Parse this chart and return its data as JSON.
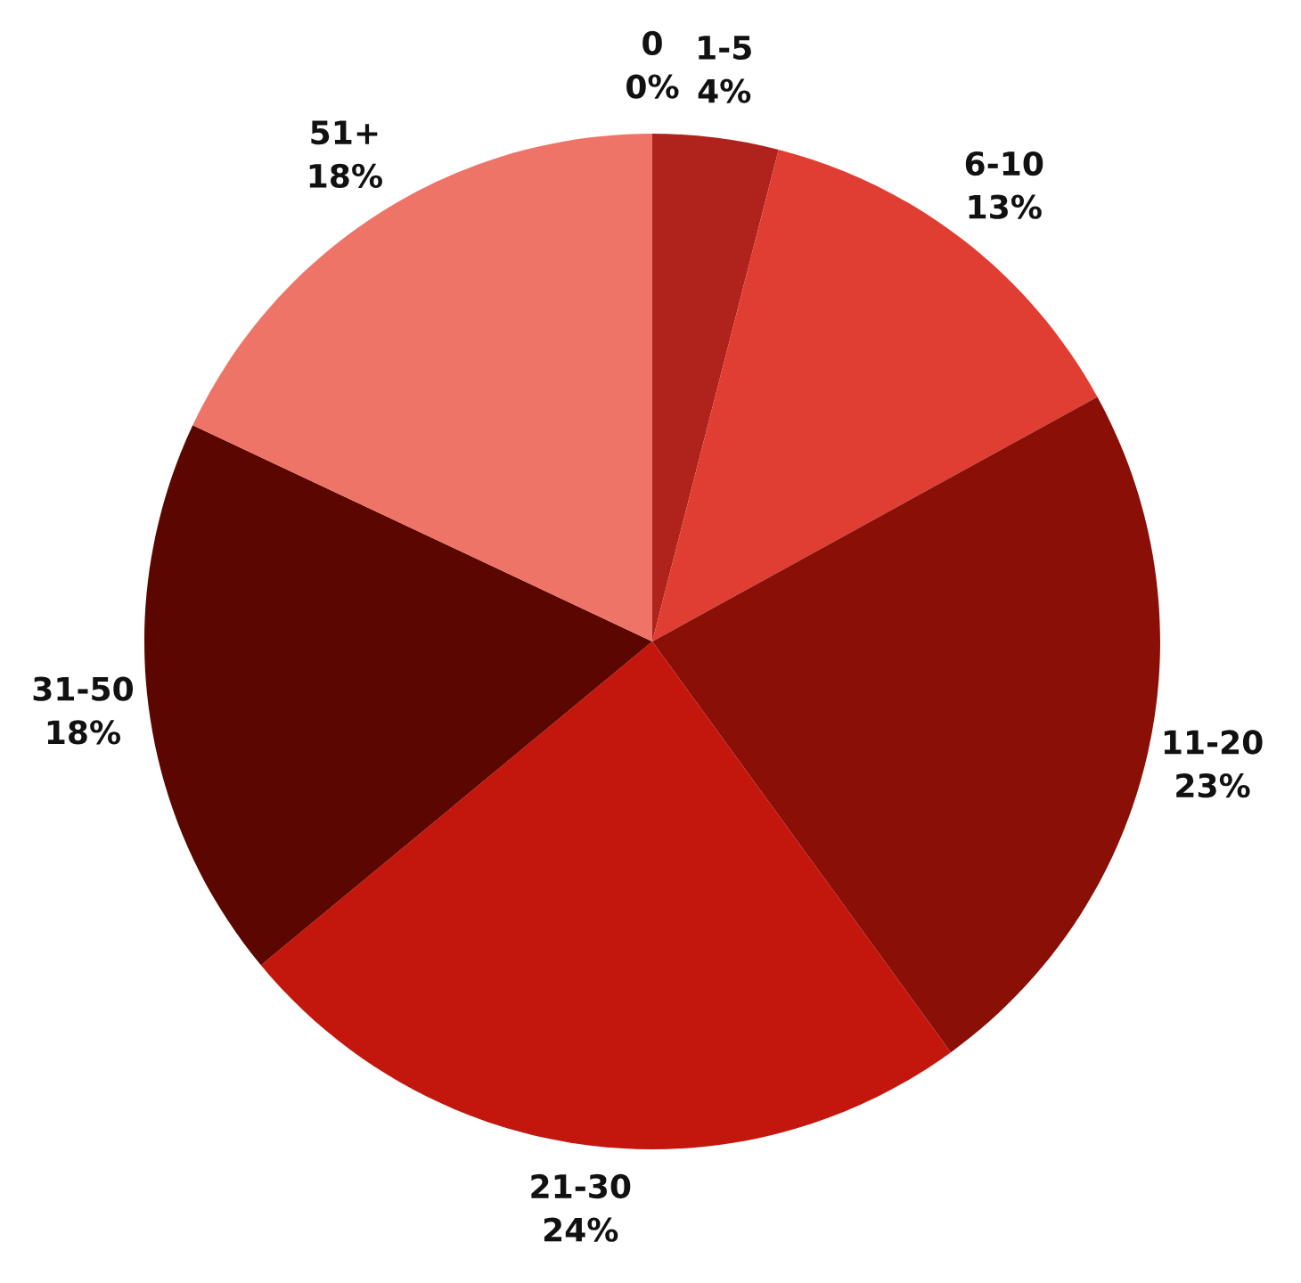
{
  "chart_data": {
    "type": "pie",
    "categories": [
      "0",
      "1-5",
      "6-10",
      "11-20",
      "21-30",
      "31-50",
      "51+"
    ],
    "values": [
      0,
      4,
      13,
      23,
      24,
      18,
      18
    ],
    "value_labels": [
      "0%",
      "4%",
      "13%",
      "23%",
      "24%",
      "18%",
      "18%"
    ],
    "colors": [
      "#b0231c",
      "#b0231c",
      "#e03e33",
      "#8a0f07",
      "#c3160c",
      "#5c0600",
      "#ee7468"
    ]
  }
}
